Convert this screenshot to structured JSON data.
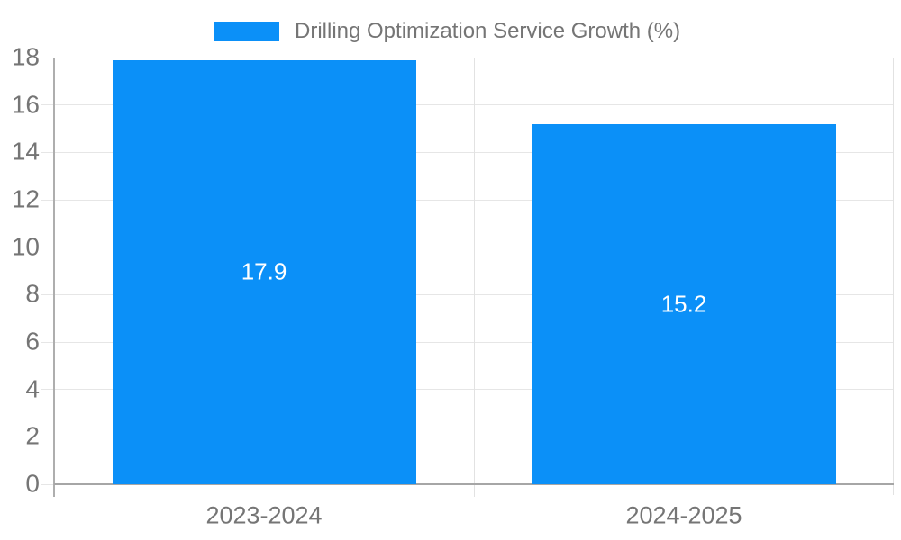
{
  "chart_data": {
    "type": "bar",
    "title": "",
    "legend": {
      "label": "Drilling Optimization Service Growth (%)",
      "position": "top"
    },
    "categories": [
      "2023-2024",
      "2024-2025"
    ],
    "values": [
      17.9,
      15.2
    ],
    "value_labels": [
      "17.9",
      "15.2"
    ],
    "series": [
      {
        "name": "Drilling Optimization Service Growth (%)",
        "values": [
          17.9,
          15.2
        ]
      }
    ],
    "xlabel": "",
    "ylabel": "",
    "ylim": [
      0,
      18
    ],
    "yticks": [
      0,
      2,
      4,
      6,
      8,
      10,
      12,
      14,
      16,
      18
    ],
    "grid": true,
    "colors": {
      "bar": "#0b90f8",
      "value_label": "#ffffff",
      "tick_label": "#757575",
      "legend_text": "#757575",
      "gridline": "#e6e6e6",
      "axis": "#a6a6a6",
      "background": "#ffffff"
    }
  }
}
